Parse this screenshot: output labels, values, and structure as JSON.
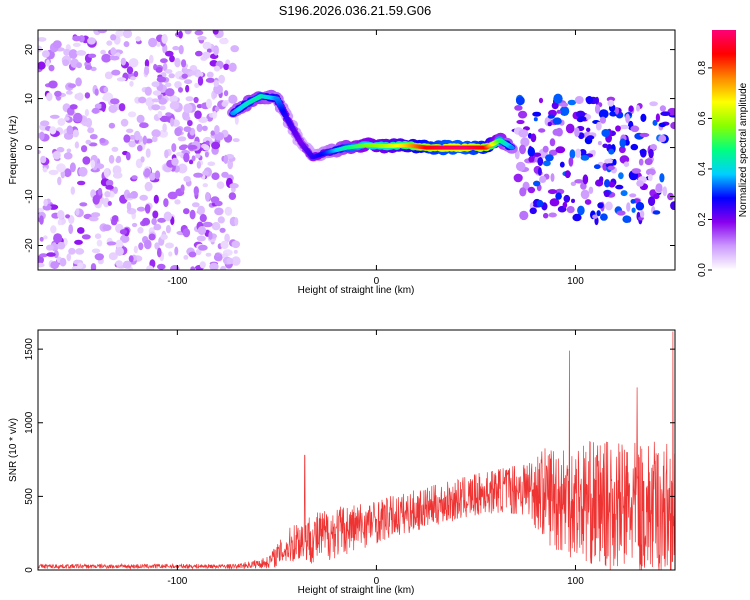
{
  "title": "S196.2026.036.21.59.G06",
  "chart_data": [
    {
      "type": "heatmap",
      "xlabel": "Height of straight line (km)",
      "ylabel": "Frequency (Hz)",
      "xlim": [
        -170,
        150
      ],
      "ylim": [
        -25,
        24
      ],
      "xticks": [
        -100,
        0,
        100
      ],
      "yticks": [
        -20,
        -10,
        0,
        10,
        20
      ],
      "colorbar": {
        "label": "Normalized spectral amplitude",
        "range": [
          0.0,
          0.95
        ],
        "ticks": [
          0.0,
          0.2,
          0.4,
          0.6,
          0.8
        ],
        "tick_labels": [
          "0.0",
          "0.2",
          "0.4",
          "0.6",
          "0.8"
        ],
        "colors": [
          "#ffffff",
          "#cc99ff",
          "#8800ee",
          "#0000ff",
          "#00d0ff",
          "#00ff80",
          "#88ff00",
          "#ffff00",
          "#ff8800",
          "#ff0000",
          "#ff0077"
        ]
      },
      "noise_region": {
        "x": [
          -170,
          -70
        ],
        "f": [
          -25,
          24
        ],
        "amp": 0.18
      },
      "ridge": [
        {
          "x": -72,
          "f": 7,
          "amp": 0.35
        },
        {
          "x": -65,
          "f": 9,
          "amp": 0.42
        },
        {
          "x": -58,
          "f": 10.5,
          "amp": 0.45
        },
        {
          "x": -50,
          "f": 10,
          "amp": 0.35
        },
        {
          "x": -45,
          "f": 6,
          "amp": 0.25
        },
        {
          "x": -38,
          "f": 1,
          "amp": 0.2
        },
        {
          "x": -32,
          "f": -2,
          "amp": 0.25
        },
        {
          "x": -25,
          "f": -1,
          "amp": 0.3
        },
        {
          "x": -15,
          "f": 0,
          "amp": 0.45
        },
        {
          "x": -5,
          "f": 0.5,
          "amp": 0.55
        },
        {
          "x": 5,
          "f": 0.3,
          "amp": 0.6
        },
        {
          "x": 15,
          "f": 0.5,
          "amp": 0.7
        },
        {
          "x": 25,
          "f": 0,
          "amp": 0.85
        },
        {
          "x": 35,
          "f": 0,
          "amp": 0.92
        },
        {
          "x": 45,
          "f": 0,
          "amp": 0.93
        },
        {
          "x": 55,
          "f": 0,
          "amp": 0.85
        },
        {
          "x": 62,
          "f": 1.5,
          "amp": 0.5
        },
        {
          "x": 68,
          "f": 0,
          "amp": 0.35
        }
      ],
      "scatter_region": {
        "x": [
          70,
          150
        ],
        "f": [
          -15,
          10
        ],
        "amp": 0.3
      }
    },
    {
      "type": "line",
      "xlabel": "Height of straight line (km)",
      "ylabel": "SNR (10 * v/v)",
      "xlim": [
        -170,
        150
      ],
      "ylim": [
        0,
        1630
      ],
      "xticks": [
        -100,
        0,
        100
      ],
      "yticks": [
        0,
        500,
        1000,
        1500
      ],
      "color": "#ee3333",
      "trend": [
        {
          "x": -170,
          "mean": 25,
          "spread": 15
        },
        {
          "x": -70,
          "mean": 25,
          "spread": 15
        },
        {
          "x": -55,
          "mean": 50,
          "spread": 40
        },
        {
          "x": -40,
          "mean": 200,
          "spread": 150
        },
        {
          "x": -30,
          "mean": 220,
          "spread": 180
        },
        {
          "x": -20,
          "mean": 260,
          "spread": 180
        },
        {
          "x": 0,
          "mean": 330,
          "spread": 150
        },
        {
          "x": 30,
          "mean": 440,
          "spread": 140
        },
        {
          "x": 60,
          "mean": 540,
          "spread": 150
        },
        {
          "x": 75,
          "mean": 560,
          "spread": 200
        },
        {
          "x": 90,
          "mean": 500,
          "spread": 380
        },
        {
          "x": 110,
          "mean": 450,
          "spread": 430
        },
        {
          "x": 130,
          "mean": 420,
          "spread": 450
        },
        {
          "x": 150,
          "mean": 400,
          "spread": 480
        }
      ],
      "peaks": [
        {
          "x": -36,
          "y": 780
        },
        {
          "x": 97,
          "y": 1490
        },
        {
          "x": 131,
          "y": 1240
        },
        {
          "x": 149,
          "y": 1620
        }
      ]
    }
  ]
}
